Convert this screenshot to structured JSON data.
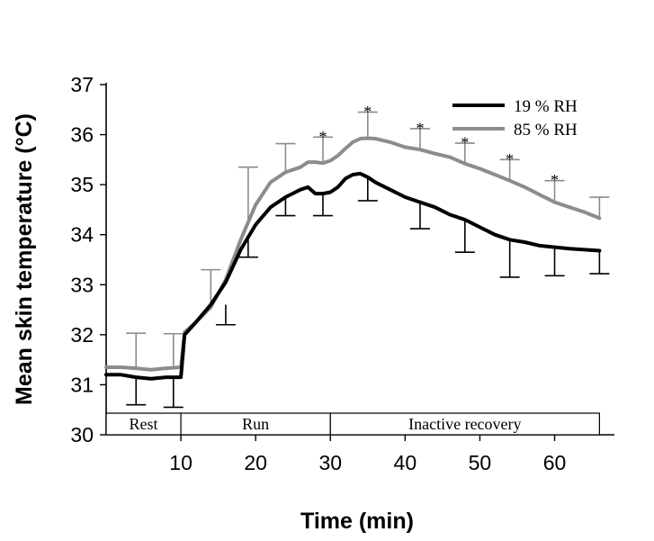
{
  "chart_data": {
    "type": "line",
    "xlabel": "Time (min)",
    "ylabel": "Mean skin temperature (°C)",
    "xlim": [
      0,
      68
    ],
    "ylim": [
      30,
      37
    ],
    "x_ticks": [
      10,
      20,
      30,
      40,
      50,
      60
    ],
    "y_ticks": [
      30,
      31,
      32,
      33,
      34,
      35,
      36,
      37
    ],
    "grid": false,
    "legend_position": "top-right",
    "series": [
      {
        "name": "19 % RH",
        "color": "#000000",
        "x": [
          0,
          2,
          4,
          6,
          8,
          10,
          10.5,
          12,
          14,
          16,
          18,
          20,
          22,
          24,
          26,
          27,
          28,
          29,
          30,
          31,
          32,
          33,
          34,
          35,
          36,
          38,
          40,
          42,
          44,
          46,
          48,
          50,
          52,
          54,
          56,
          58,
          60,
          62,
          64,
          66
        ],
        "values": [
          31.2,
          31.2,
          31.15,
          31.12,
          31.15,
          31.15,
          32.0,
          32.25,
          32.6,
          33.05,
          33.7,
          34.2,
          34.55,
          34.75,
          34.9,
          34.95,
          34.82,
          34.82,
          34.85,
          34.95,
          35.12,
          35.2,
          35.22,
          35.15,
          35.05,
          34.9,
          34.75,
          34.65,
          34.55,
          34.4,
          34.3,
          34.15,
          34.0,
          33.9,
          33.85,
          33.78,
          33.75,
          33.72,
          33.7,
          33.68
        ]
      },
      {
        "name": "85 % RH",
        "color": "#8c8c8c",
        "x": [
          0,
          2,
          4,
          6,
          8,
          10,
          10.5,
          12,
          14,
          16,
          18,
          20,
          22,
          24,
          26,
          27,
          28,
          29,
          30,
          31,
          32,
          33,
          34,
          35,
          36,
          38,
          40,
          42,
          44,
          46,
          48,
          50,
          52,
          54,
          56,
          58,
          60,
          62,
          64,
          66
        ],
        "values": [
          31.35,
          31.35,
          31.33,
          31.3,
          31.33,
          31.35,
          32.05,
          32.25,
          32.55,
          33.1,
          33.9,
          34.6,
          35.05,
          35.25,
          35.35,
          35.45,
          35.45,
          35.43,
          35.48,
          35.58,
          35.72,
          35.85,
          35.92,
          35.93,
          35.92,
          35.85,
          35.75,
          35.7,
          35.62,
          35.55,
          35.42,
          35.32,
          35.2,
          35.08,
          34.95,
          34.8,
          34.65,
          34.55,
          34.45,
          34.33
        ]
      }
    ],
    "error_bars": [
      {
        "series": "19 % RH",
        "x": [
          4,
          9,
          16,
          19,
          24,
          29,
          35,
          42,
          48,
          54,
          60,
          66
        ],
        "y": [
          31.15,
          31.15,
          32.6,
          33.9,
          34.75,
          34.82,
          35.15,
          34.65,
          34.3,
          33.9,
          33.75,
          33.68
        ],
        "y_end": [
          30.6,
          30.55,
          32.2,
          33.55,
          34.38,
          34.38,
          34.68,
          34.12,
          33.65,
          33.15,
          33.18,
          33.22
        ]
      },
      {
        "series": "85 % RH",
        "x": [
          4,
          9,
          14,
          19,
          24,
          29,
          35,
          42,
          48,
          54,
          60,
          66
        ],
        "y": [
          31.33,
          31.33,
          32.55,
          34.25,
          35.25,
          35.43,
          35.93,
          35.7,
          35.42,
          35.08,
          34.65,
          34.33
        ],
        "y_end": [
          32.03,
          32.02,
          33.3,
          35.35,
          35.82,
          35.95,
          36.45,
          36.12,
          35.83,
          35.5,
          35.08,
          34.75
        ]
      }
    ],
    "annotations": [
      {
        "text": "*",
        "x": 29,
        "y": 36.05
      },
      {
        "text": "*",
        "x": 35,
        "y": 36.55
      },
      {
        "text": "*",
        "x": 42,
        "y": 36.22
      },
      {
        "text": "*",
        "x": 48,
        "y": 35.93
      },
      {
        "text": "*",
        "x": 54,
        "y": 35.6
      },
      {
        "text": "*",
        "x": 60,
        "y": 35.18
      }
    ],
    "phases": [
      {
        "label": "Rest",
        "start": 0,
        "end": 10
      },
      {
        "label": "Run",
        "start": 10,
        "end": 30
      },
      {
        "label": "Inactive recovery",
        "start": 30,
        "end": 66
      }
    ]
  }
}
